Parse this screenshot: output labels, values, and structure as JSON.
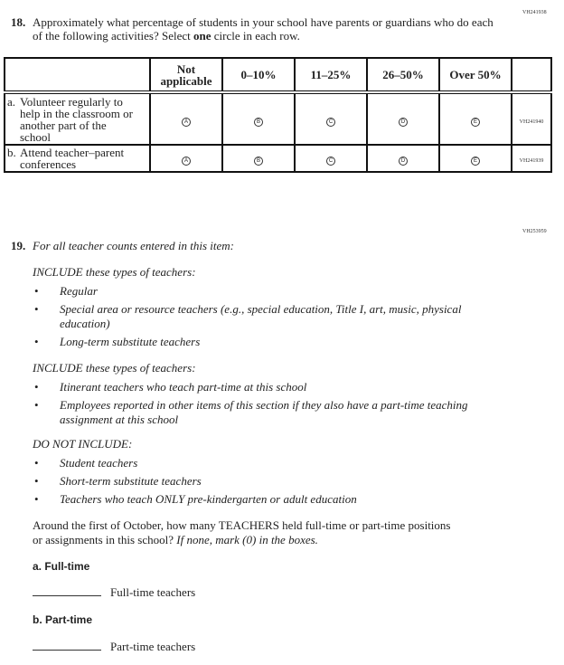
{
  "q18": {
    "code": "VH241938",
    "number": "18.",
    "text_before": "Approximately what percentage of students in your school have parents or guardians who do each of the following activities? Select ",
    "text_bold": "one",
    "text_after": " circle in each row.",
    "columns": [
      "Not applicable",
      "0–10%",
      "11–25%",
      "26–50%",
      "Over 50%"
    ],
    "bubble_letters": [
      "A",
      "B",
      "C",
      "D",
      "E"
    ],
    "rows": [
      {
        "letter": "a.",
        "label": "Volunteer regularly to help in the classroom or another part of the school",
        "code": "VH241940"
      },
      {
        "letter": "b.",
        "label": "Attend teacher–parent conferences",
        "code": "VH241939"
      }
    ]
  },
  "q19": {
    "code": "VH253959",
    "number": "19.",
    "intro": "For all teacher counts entered in this item:",
    "groups": [
      {
        "heading": "INCLUDE these types of teachers:",
        "items": [
          "Regular",
          "Special area or resource teachers (e.g., special education, Title I, art, music, physical education)",
          "Long-term substitute teachers"
        ]
      },
      {
        "heading": "INCLUDE these types of teachers:",
        "items": [
          "Itinerant teachers who teach part-time at this school",
          "Employees reported in other items of this section if they also have a part-time teaching assignment at this school"
        ]
      },
      {
        "heading": "DO NOT INCLUDE:",
        "items": [
          "Student teachers",
          "Short-term substitute teachers",
          "Teachers who teach ONLY pre-kindergarten or adult education"
        ]
      }
    ],
    "question": "Around the first of October, how many TEACHERS held full-time or part-time positions or assignments in this school? ",
    "question_italic": "If none, mark (0) in the boxes.",
    "parts": [
      {
        "label": "a. Full-time",
        "field_label": "Full-time teachers",
        "value": ""
      },
      {
        "label": "b. Part-time",
        "field_label": "Part-time teachers",
        "value": ""
      }
    ]
  }
}
